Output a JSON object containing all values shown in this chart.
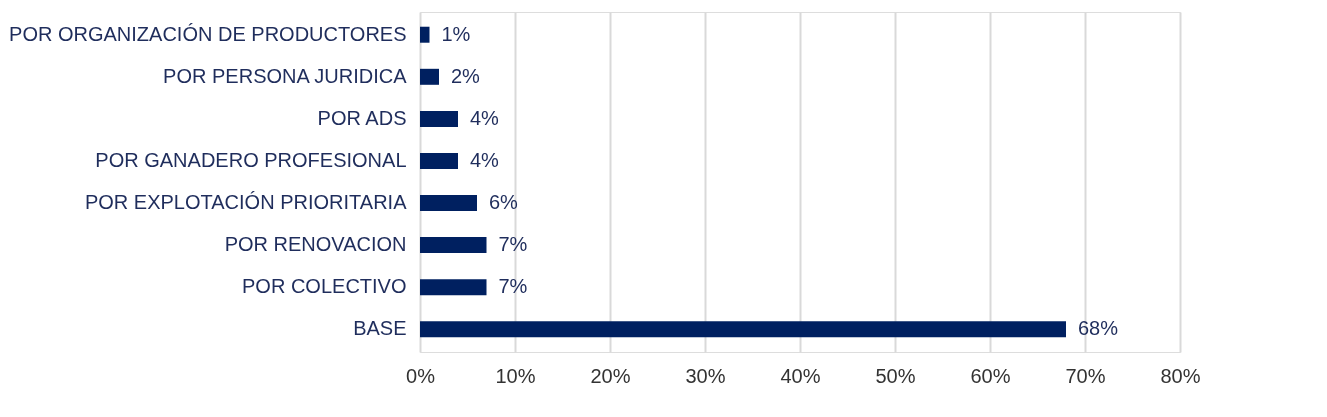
{
  "chart_data": {
    "type": "bar",
    "orientation": "horizontal",
    "categories": [
      "POR ORGANIZACIÓN DE PRODUCTORES",
      "POR PERSONA JURIDICA",
      "POR ADS",
      "POR GANADERO PROFESIONAL",
      "POR EXPLOTACIÓN PRIORITARIA",
      "POR RENOVACION",
      "POR COLECTIVO",
      "BASE"
    ],
    "values": [
      1,
      2,
      4,
      4,
      6,
      7,
      7,
      68
    ],
    "value_labels": [
      "1%",
      "2%",
      "4%",
      "4%",
      "6%",
      "7%",
      "7%",
      "68%"
    ],
    "color": "#002060",
    "xlim": [
      0,
      80
    ],
    "xticks": [
      {
        "value": 0,
        "label": "0%"
      },
      {
        "value": 10,
        "label": "10%"
      },
      {
        "value": 20,
        "label": "20%"
      },
      {
        "value": 30,
        "label": "30%"
      },
      {
        "value": 40,
        "label": "40%"
      },
      {
        "value": 50,
        "label": "50%"
      },
      {
        "value": 60,
        "label": "60%"
      },
      {
        "value": 70,
        "label": "70%"
      },
      {
        "value": 80,
        "label": "80%"
      }
    ],
    "grid": "x"
  }
}
